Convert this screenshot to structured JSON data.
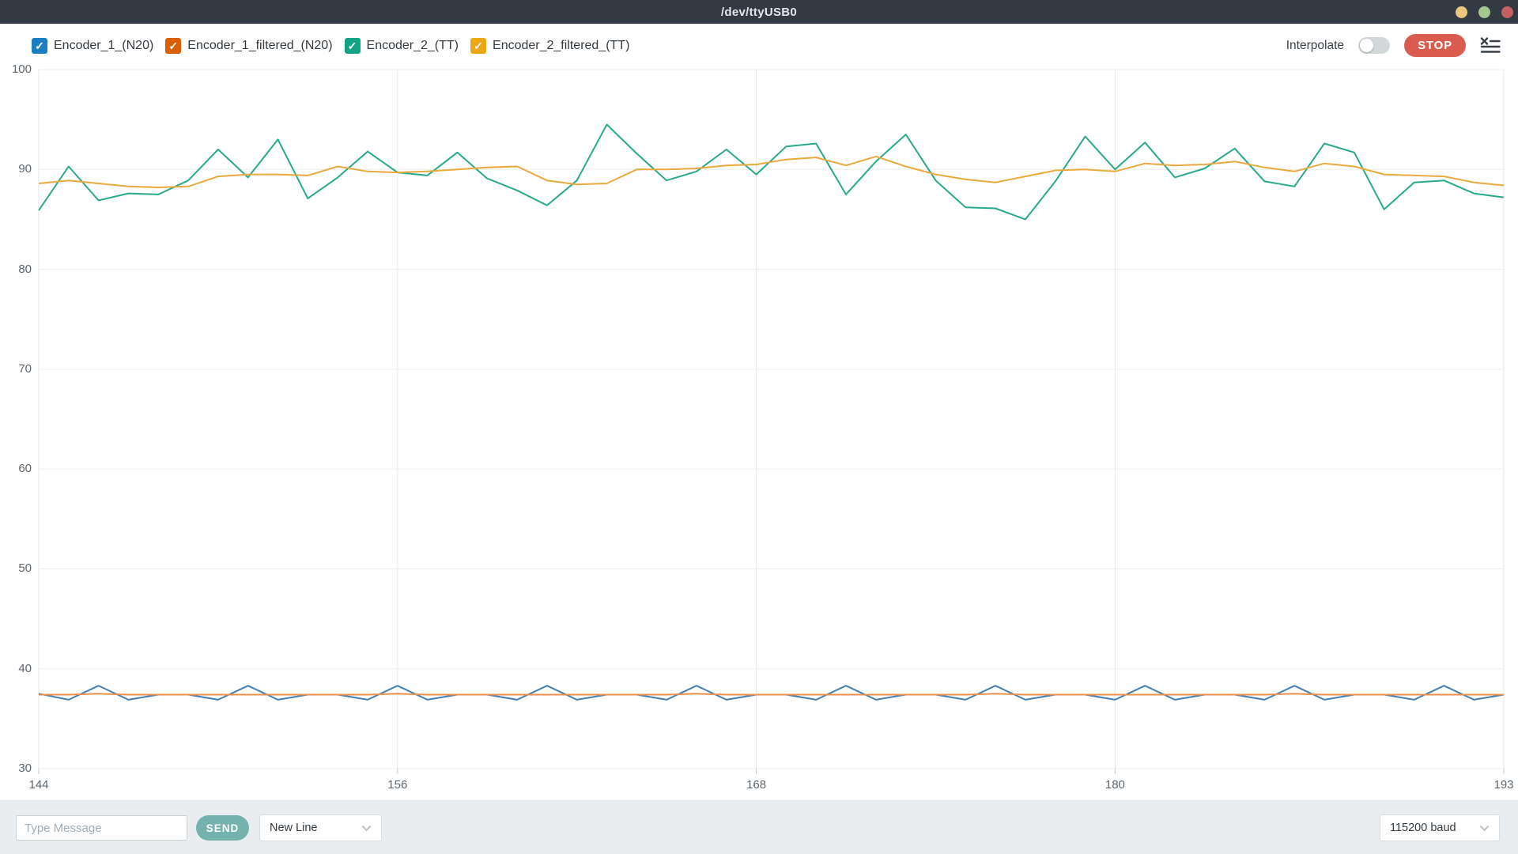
{
  "window": {
    "title": "/dev/ttyUSB0",
    "titlebar_color": "#343a44",
    "controls": [
      {
        "name": "minimize",
        "color": "#eac67e"
      },
      {
        "name": "maximize",
        "color": "#a6c78f"
      },
      {
        "name": "close",
        "color": "#c66060"
      }
    ]
  },
  "toolbar": {
    "series_toggles": [
      {
        "label": "Encoder_1_(N20)",
        "color": "#1b7ec2",
        "checked": true
      },
      {
        "label": "Encoder_1_filtered_(N20)",
        "color": "#d95f02",
        "checked": true
      },
      {
        "label": "Encoder_2_(TT)",
        "color": "#12a384",
        "checked": true
      },
      {
        "label": "Encoder_2_filtered_(TT)",
        "color": "#eca715",
        "checked": true
      }
    ],
    "check_glyph": "✓",
    "interpolate": {
      "label": "Interpolate",
      "enabled": false
    },
    "stop_button": {
      "label": "STOP",
      "color": "#da5c4e"
    }
  },
  "chart_data": {
    "type": "line",
    "x": [
      144,
      145,
      146,
      147,
      148,
      149,
      150,
      151,
      152,
      153,
      154,
      155,
      156,
      157,
      158,
      159,
      160,
      161,
      162,
      163,
      164,
      165,
      166,
      167,
      168,
      169,
      170,
      171,
      172,
      173,
      174,
      175,
      176,
      177,
      178,
      179,
      180,
      181,
      182,
      183,
      184,
      185,
      186,
      187,
      188,
      189,
      190,
      191,
      192,
      193
    ],
    "series": [
      {
        "name": "Encoder_1_(N20)",
        "color": "#4280b4",
        "values": [
          37.5,
          36.9,
          38.3,
          36.9,
          37.4,
          37.4,
          36.9,
          38.3,
          36.9,
          37.4,
          37.4,
          36.9,
          38.3,
          36.9,
          37.4,
          37.4,
          36.9,
          38.3,
          36.9,
          37.4,
          37.4,
          36.9,
          38.3,
          36.9,
          37.4,
          37.4,
          36.9,
          38.3,
          36.9,
          37.4,
          37.4,
          36.9,
          38.3,
          36.9,
          37.4,
          37.4,
          36.9,
          38.3,
          36.9,
          37.4,
          37.4,
          36.9,
          38.3,
          36.9,
          37.4,
          37.4,
          36.9,
          38.3,
          36.9,
          37.4
        ]
      },
      {
        "name": "Encoder_1_filtered_(N20)",
        "color": "#e8914e",
        "values": [
          37.4,
          37.4,
          37.5,
          37.4,
          37.4,
          37.4,
          37.4,
          37.4,
          37.4,
          37.4,
          37.4,
          37.4,
          37.5,
          37.4,
          37.4,
          37.4,
          37.4,
          37.4,
          37.4,
          37.4,
          37.4,
          37.4,
          37.5,
          37.4,
          37.4,
          37.4,
          37.4,
          37.4,
          37.4,
          37.4,
          37.4,
          37.4,
          37.5,
          37.4,
          37.4,
          37.4,
          37.4,
          37.4,
          37.4,
          37.4,
          37.4,
          37.4,
          37.5,
          37.4,
          37.4,
          37.4,
          37.4,
          37.4,
          37.4,
          37.4
        ]
      },
      {
        "name": "Encoder_2_(TT)",
        "color": "#29a98c",
        "values": [
          85.9,
          90.3,
          86.9,
          87.6,
          87.5,
          88.9,
          92.0,
          89.2,
          93.0,
          87.1,
          89.2,
          91.8,
          89.7,
          89.4,
          91.7,
          89.1,
          87.9,
          86.4,
          88.9,
          94.5,
          91.6,
          88.9,
          89.8,
          92.0,
          89.5,
          92.3,
          92.6,
          87.5,
          90.8,
          93.5,
          88.9,
          86.2,
          86.1,
          85.0,
          88.8,
          93.3,
          90.0,
          92.7,
          89.2,
          90.1,
          92.1,
          88.8,
          88.3,
          92.6,
          91.7,
          86.0,
          88.7,
          88.9,
          87.6,
          87.2
        ]
      },
      {
        "name": "Encoder_2_filtered_(TT)",
        "color": "#eaa93d",
        "values": [
          88.6,
          88.9,
          88.6,
          88.3,
          88.2,
          88.3,
          89.3,
          89.5,
          89.5,
          89.4,
          90.3,
          89.8,
          89.7,
          89.8,
          90.0,
          90.2,
          90.3,
          88.9,
          88.5,
          88.6,
          90.0,
          90.0,
          90.1,
          90.4,
          90.5,
          91.0,
          91.2,
          90.4,
          91.3,
          90.3,
          89.5,
          89.0,
          88.7,
          89.3,
          89.9,
          90.0,
          89.8,
          90.6,
          90.4,
          90.5,
          90.8,
          90.2,
          89.8,
          90.6,
          90.3,
          89.5,
          89.4,
          89.3,
          88.7,
          88.4
        ]
      }
    ],
    "xlim": [
      144,
      193
    ],
    "ylim": [
      30,
      100
    ],
    "xticks": [
      144,
      156,
      168,
      180,
      193
    ],
    "yticks": [
      30,
      40,
      50,
      60,
      70,
      80,
      90,
      100
    ],
    "grid": true,
    "legend_position": "toolbar-top-left"
  },
  "message_bar": {
    "input_placeholder": "Type Message",
    "send_label": "SEND",
    "line_ending": "New Line",
    "baud_rate": "115200 baud"
  }
}
